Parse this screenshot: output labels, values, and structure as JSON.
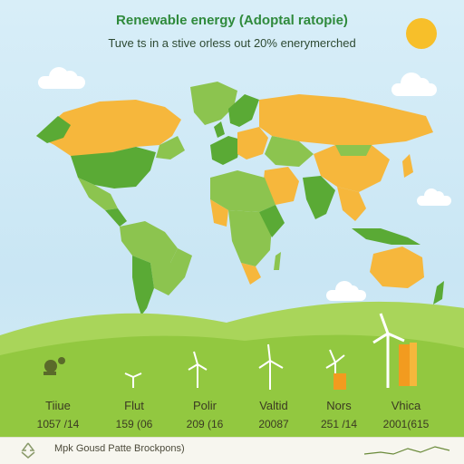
{
  "title": "Renewable energy (Adoptal ratopie)",
  "subtitle": "Tuve ts in a stive orless out 20% enerymerched",
  "colors": {
    "high_adoption": "#5aaa35",
    "mid_adoption": "#8cc44f",
    "low_adoption": "#f6b73c",
    "sky": "#cfe9f5",
    "hill": "#92c840",
    "sun": "#f7bf2a"
  },
  "icons": [
    "sun-icon",
    "cloud-icon",
    "wind-turbine-icon",
    "recycle-icon",
    "bar-chart-icon",
    "figure-icon"
  ],
  "stats": [
    {
      "label": "Tiiue",
      "value": "1057 /14"
    },
    {
      "label": "Flut",
      "value": "159 (06"
    },
    {
      "label": "Polir",
      "value": "209 (16"
    },
    {
      "label": "Valtid",
      "value": "20087"
    },
    {
      "label": "Nors",
      "value": "251 /14"
    },
    {
      "label": "Vhica",
      "value": "2001(615"
    }
  ],
  "footer": {
    "text": "Mpk Gousd Patte Brockpons)"
  }
}
